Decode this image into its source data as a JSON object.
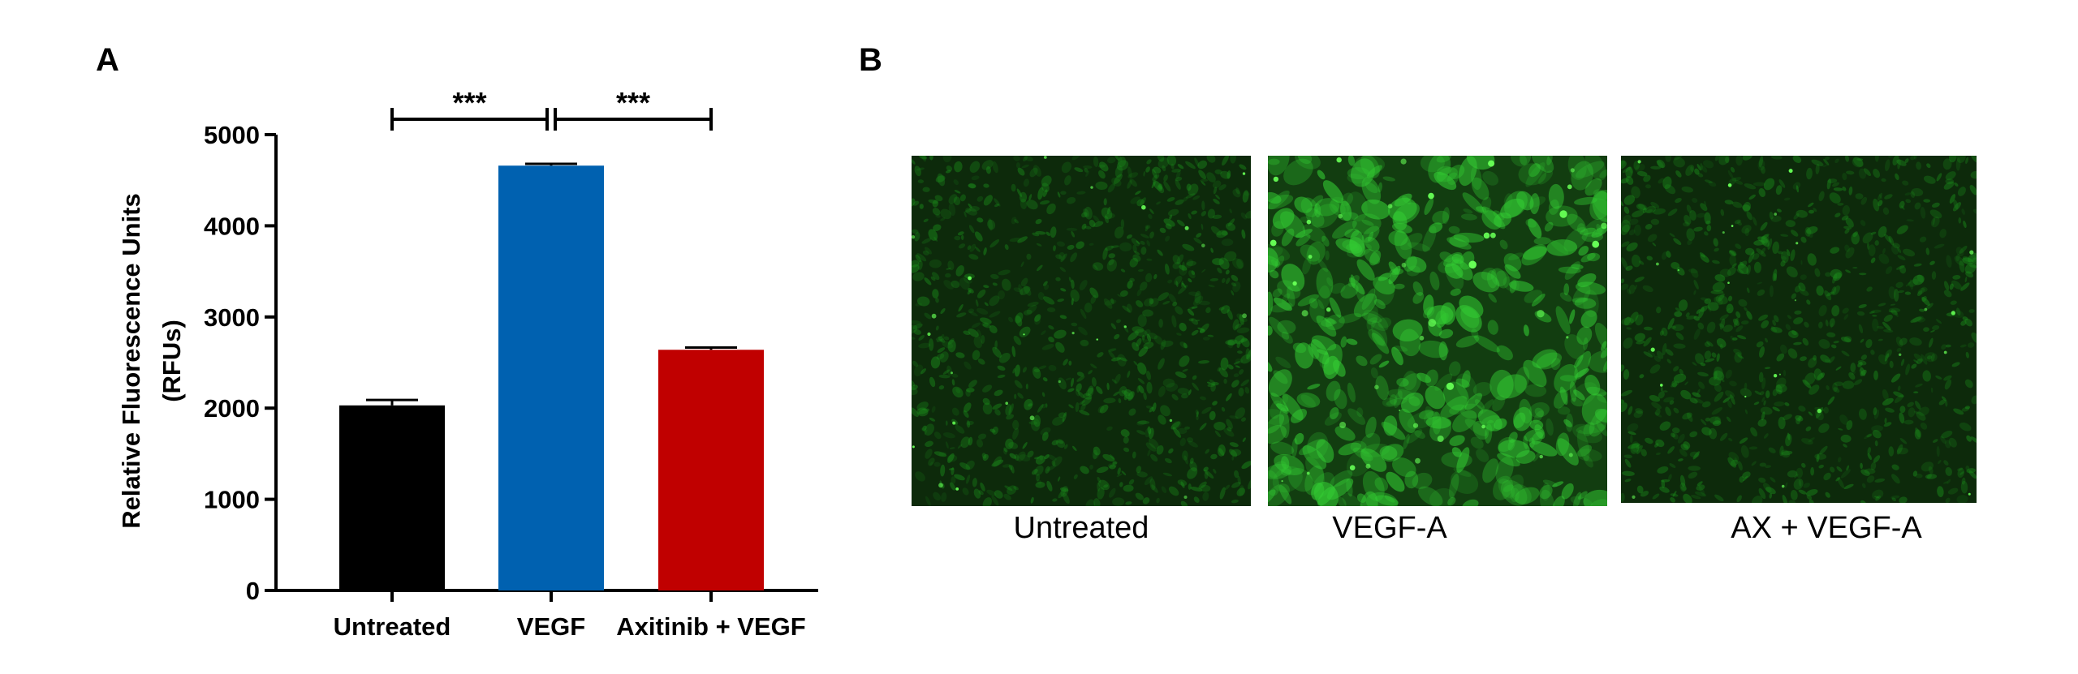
{
  "panel_a_letter": "A",
  "panel_b_letter": "B",
  "chart_data": {
    "type": "bar",
    "title": "",
    "xlabel": "",
    "ylabel": "Relative Fluorescence Units",
    "ylabel_line2": "(RFUs)",
    "categories": [
      "Untreated",
      "VEGF",
      "Axitinib + VEGF"
    ],
    "values": [
      2030,
      4660,
      2640
    ],
    "errors": [
      60,
      20,
      25
    ],
    "colors": [
      "#000000",
      "#0061b0",
      "#c00000"
    ],
    "ylim": [
      0,
      5000
    ],
    "yticks": [
      0,
      1000,
      2000,
      3000,
      4000,
      5000
    ],
    "grid": false,
    "legend": "none",
    "significance": [
      {
        "from": 0,
        "to": 1,
        "label": "***"
      },
      {
        "from": 1,
        "to": 2,
        "label": "***"
      }
    ]
  },
  "images": [
    {
      "caption": "Untreated",
      "brightness": "dim",
      "color": "#1b8a1b"
    },
    {
      "caption": "VEGF-A",
      "brightness": "bright",
      "color": "#33cc33"
    },
    {
      "caption": "AX + VEGF-A",
      "brightness": "dim",
      "color": "#1b8a1b"
    }
  ]
}
